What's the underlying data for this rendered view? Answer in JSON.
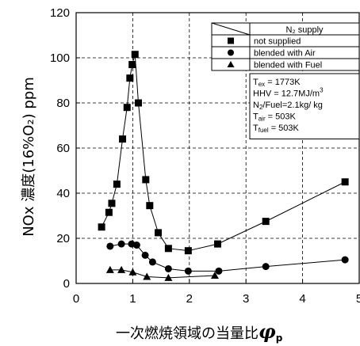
{
  "chart_data": {
    "type": "scatter",
    "xlim": [
      0,
      5
    ],
    "ylim": [
      0,
      120
    ],
    "x_ticks": [
      "0",
      "1",
      "2",
      "3",
      "4",
      "5"
    ],
    "y_ticks": [
      "0",
      "20",
      "40",
      "60",
      "80",
      "100",
      "120"
    ],
    "xlabel_main": "一次燃焼領域の当量比",
    "xlabel_symbol": "φ",
    "xlabel_subscript": "p",
    "ylabel": "NOx 濃度(16%O₂) ppm",
    "grid": true,
    "legend_position": "top-right",
    "legend_header": "N₂ supply",
    "series": [
      {
        "name": "not supplied",
        "marker": "square",
        "points": [
          [
            0.45,
            25
          ],
          [
            0.58,
            31.5
          ],
          [
            0.63,
            35.5
          ],
          [
            0.72,
            44
          ],
          [
            0.82,
            64
          ],
          [
            0.9,
            78
          ],
          [
            0.95,
            91
          ],
          [
            0.99,
            97
          ],
          [
            1.04,
            101.5
          ],
          [
            1.1,
            80
          ],
          [
            1.23,
            46
          ],
          [
            1.3,
            34.5
          ],
          [
            1.45,
            22.5
          ],
          [
            1.63,
            15.5
          ],
          [
            1.98,
            14.5
          ],
          [
            2.5,
            17.5
          ],
          [
            3.35,
            27.5
          ],
          [
            4.75,
            45
          ]
        ]
      },
      {
        "name": "blended with Air",
        "marker": "circle",
        "points": [
          [
            0.6,
            16.5
          ],
          [
            0.8,
            17.5
          ],
          [
            0.98,
            17.5
          ],
          [
            1.07,
            17
          ],
          [
            1.22,
            12.5
          ],
          [
            1.35,
            9.5
          ],
          [
            1.63,
            6.5
          ],
          [
            1.98,
            5.5
          ],
          [
            2.52,
            5.5
          ],
          [
            3.35,
            7.5
          ],
          [
            4.75,
            10.5
          ]
        ]
      },
      {
        "name": "blended with Fuel",
        "marker": "triangle",
        "points": [
          [
            0.6,
            6
          ],
          [
            0.8,
            6
          ],
          [
            1.0,
            5
          ],
          [
            1.25,
            3
          ],
          [
            1.63,
            2.5
          ],
          [
            2.45,
            3.5
          ]
        ]
      }
    ],
    "conditions": [
      {
        "lead": "T",
        "sub": "ex",
        "tail": " = 1773K"
      },
      {
        "lead": "HHV = 12.7MJ/m",
        "sup": "3"
      },
      {
        "lead": "N",
        "sub": "2",
        "tail": "/Fuel=2.1kg/ kg"
      },
      {
        "lead": "T",
        "sub": "air",
        "tail": " = 503K"
      },
      {
        "lead": "T",
        "sub": "fuel",
        "tail": " = 503K"
      }
    ]
  }
}
